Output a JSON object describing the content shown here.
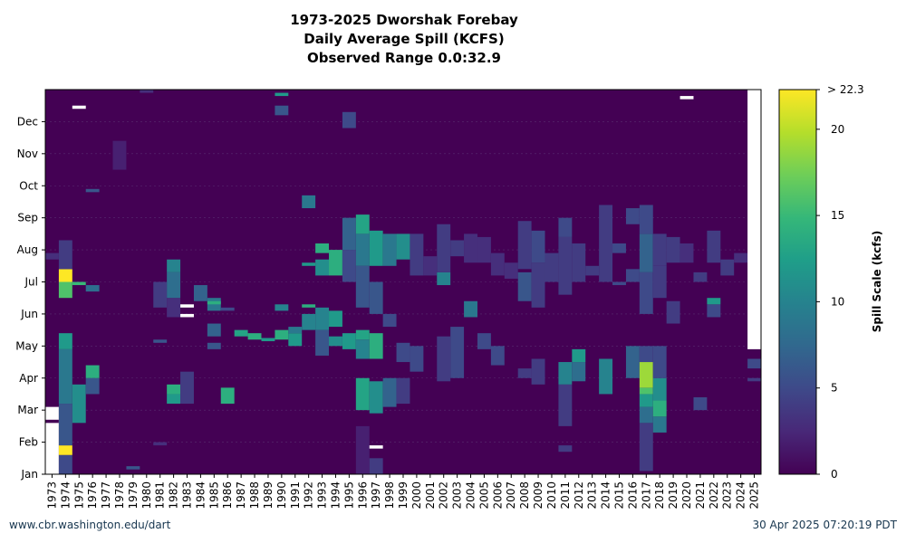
{
  "page": {
    "title_lines": [
      "1973-2025 Dworshak Forebay",
      "Daily Average Spill (KCFS)",
      "Observed Range 0.0:32.9"
    ],
    "footer_left": "www.cbr.washington.edu/dart",
    "footer_right": "30 Apr 2025 07:20:19 PDT"
  },
  "chart_data": {
    "type": "heatmap",
    "title": "1973-2025 Dworshak Forebay",
    "subtitle": "Daily Average Spill (KCFS)",
    "range_label": "Observed Range 0.0:32.9",
    "x_categories": [
      "1973",
      "1974",
      "1975",
      "1976",
      "1977",
      "1978",
      "1979",
      "1980",
      "1981",
      "1982",
      "1983",
      "1984",
      "1985",
      "1986",
      "1987",
      "1988",
      "1989",
      "1990",
      "1991",
      "1992",
      "1993",
      "1994",
      "1995",
      "1996",
      "1997",
      "1998",
      "1999",
      "2000",
      "2001",
      "2002",
      "2003",
      "2004",
      "2005",
      "2006",
      "2007",
      "2008",
      "2009",
      "2010",
      "2011",
      "2012",
      "2013",
      "2014",
      "2015",
      "2016",
      "2017",
      "2018",
      "2019",
      "2020",
      "2021",
      "2022",
      "2023",
      "2024",
      "2025"
    ],
    "y_ticks": [
      "Jan",
      "Feb",
      "Mar",
      "Apr",
      "May",
      "Jun",
      "Jul",
      "Aug",
      "Sep",
      "Oct",
      "Nov",
      "Dec"
    ],
    "colorbar": {
      "label": "Spill Scale (kcfs)",
      "min": 0,
      "max": 22.3,
      "ticks": [
        0,
        5,
        10,
        15,
        20
      ],
      "max_label": "> 22.3",
      "colors": [
        "#440154",
        "#482878",
        "#3e4989",
        "#31688e",
        "#26828e",
        "#1f9e89",
        "#35b779",
        "#6ece58",
        "#b5de2b",
        "#fde725"
      ]
    },
    "background_value": 0,
    "missing_color": "#ffffff",
    "events": [
      {
        "year": "1973",
        "months": [
          1.0,
          3.1
        ],
        "value": null
      },
      {
        "year": "1973",
        "months": [
          2.6,
          2.7
        ],
        "value": 0
      },
      {
        "year": "1973",
        "months": [
          7.7,
          7.9
        ],
        "value": 3
      },
      {
        "year": "1974",
        "months": [
          1.0,
          1.6
        ],
        "value": 5
      },
      {
        "year": "1974",
        "months": [
          1.6,
          1.9
        ],
        "value": 22.3
      },
      {
        "year": "1974",
        "months": [
          1.9,
          3.2
        ],
        "value": 6
      },
      {
        "year": "1974",
        "months": [
          3.2,
          4.9
        ],
        "value": 9
      },
      {
        "year": "1974",
        "months": [
          4.9,
          5.4
        ],
        "value": 12
      },
      {
        "year": "1974",
        "months": [
          6.5,
          7.0
        ],
        "value": 16
      },
      {
        "year": "1974",
        "months": [
          7.0,
          7.4
        ],
        "value": 22.3
      },
      {
        "year": "1974",
        "months": [
          7.4,
          8.3
        ],
        "value": 4
      },
      {
        "year": "1975",
        "months": [
          2.6,
          3.8
        ],
        "value": 11
      },
      {
        "year": "1975",
        "months": [
          6.9,
          7.0
        ],
        "value": 15
      },
      {
        "year": "1975",
        "months": [
          12.4,
          12.5
        ],
        "value": null
      },
      {
        "year": "1976",
        "months": [
          3.5,
          4.0
        ],
        "value": 6
      },
      {
        "year": "1976",
        "months": [
          4.0,
          4.4
        ],
        "value": 14
      },
      {
        "year": "1976",
        "months": [
          6.7,
          6.9
        ],
        "value": 8
      },
      {
        "year": "1976",
        "months": [
          9.8,
          9.9
        ],
        "value": 6
      },
      {
        "year": "1978",
        "months": [
          10.5,
          11.4
        ],
        "value": 2
      },
      {
        "year": "1979",
        "months": [
          1.15,
          1.25
        ],
        "value": 6
      },
      {
        "year": "1980",
        "months": [
          12.9,
          13.0
        ],
        "value": 3
      },
      {
        "year": "1981",
        "months": [
          5.1,
          5.2
        ],
        "value": 6
      },
      {
        "year": "1981",
        "months": [
          6.2,
          7.0
        ],
        "value": 4
      },
      {
        "year": "1981",
        "months": [
          1.9,
          2.0
        ],
        "value": 3
      },
      {
        "year": "1982",
        "months": [
          3.2,
          3.5
        ],
        "value": 12
      },
      {
        "year": "1982",
        "months": [
          3.5,
          3.8
        ],
        "value": 14
      },
      {
        "year": "1982",
        "months": [
          5.9,
          6.5
        ],
        "value": 3
      },
      {
        "year": "1982",
        "months": [
          6.5,
          7.3
        ],
        "value": 8
      },
      {
        "year": "1982",
        "months": [
          7.3,
          7.7
        ],
        "value": 10
      },
      {
        "year": "1983",
        "months": [
          3.2,
          4.2
        ],
        "value": 4
      },
      {
        "year": "1983",
        "months": [
          6.2,
          6.3
        ],
        "value": null
      },
      {
        "year": "1983",
        "months": [
          5.9,
          6.0
        ],
        "value": null
      },
      {
        "year": "1984",
        "months": [
          6.4,
          6.9
        ],
        "value": 7
      },
      {
        "year": "1985",
        "months": [
          4.9,
          5.1
        ],
        "value": 6
      },
      {
        "year": "1985",
        "months": [
          5.3,
          5.7
        ],
        "value": 7
      },
      {
        "year": "1985",
        "months": [
          6.1,
          6.5
        ],
        "value": 9
      },
      {
        "year": "1985",
        "months": [
          6.3,
          6.4
        ],
        "value": 14
      },
      {
        "year": "1986",
        "months": [
          3.2,
          3.7
        ],
        "value": 14
      },
      {
        "year": "1986",
        "months": [
          6.1,
          6.2
        ],
        "value": 5
      },
      {
        "year": "1987",
        "months": [
          5.3,
          5.5
        ],
        "value": 13
      },
      {
        "year": "1988",
        "months": [
          5.2,
          5.4
        ],
        "value": 14
      },
      {
        "year": "1989",
        "months": [
          5.15,
          5.25
        ],
        "value": 12
      },
      {
        "year": "1990",
        "months": [
          5.2,
          5.5
        ],
        "value": 14
      },
      {
        "year": "1990",
        "months": [
          6.1,
          6.3
        ],
        "value": 10
      },
      {
        "year": "1990",
        "months": [
          12.2,
          12.5
        ],
        "value": 6
      },
      {
        "year": "1990",
        "months": [
          12.8,
          12.9
        ],
        "value": 12
      },
      {
        "year": "1991",
        "months": [
          5.0,
          5.4
        ],
        "value": 12
      },
      {
        "year": "1991",
        "months": [
          5.4,
          5.6
        ],
        "value": 9
      },
      {
        "year": "1992",
        "months": [
          5.5,
          6.0
        ],
        "value": 10
      },
      {
        "year": "1992",
        "months": [
          6.2,
          6.3
        ],
        "value": 14
      },
      {
        "year": "1992",
        "months": [
          7.5,
          7.6
        ],
        "value": 12
      },
      {
        "year": "1992",
        "months": [
          9.3,
          9.7
        ],
        "value": 9
      },
      {
        "year": "1993",
        "months": [
          4.7,
          5.5
        ],
        "value": 6
      },
      {
        "year": "1993",
        "months": [
          5.5,
          6.2
        ],
        "value": 10
      },
      {
        "year": "1993",
        "months": [
          7.2,
          7.7
        ],
        "value": 11
      },
      {
        "year": "1993",
        "months": [
          7.9,
          8.2
        ],
        "value": 14
      },
      {
        "year": "1994",
        "months": [
          5.0,
          5.3
        ],
        "value": 11
      },
      {
        "year": "1994",
        "months": [
          5.6,
          6.1
        ],
        "value": 12
      },
      {
        "year": "1994",
        "months": [
          7.2,
          8.0
        ],
        "value": 14
      },
      {
        "year": "1995",
        "months": [
          4.9,
          5.4
        ],
        "value": 12
      },
      {
        "year": "1995",
        "months": [
          7.0,
          8.0
        ],
        "value": 5
      },
      {
        "year": "1995",
        "months": [
          8.0,
          9.0
        ],
        "value": 7
      },
      {
        "year": "1995",
        "months": [
          11.8,
          12.3
        ],
        "value": 5
      },
      {
        "year": "1996",
        "months": [
          1.0,
          2.5
        ],
        "value": 2
      },
      {
        "year": "1996",
        "months": [
          3.0,
          4.0
        ],
        "value": 13
      },
      {
        "year": "1996",
        "months": [
          4.6,
          5.2
        ],
        "value": 10
      },
      {
        "year": "1996",
        "months": [
          5.2,
          5.5
        ],
        "value": 13
      },
      {
        "year": "1996",
        "months": [
          6.2,
          7.5
        ],
        "value": 6
      },
      {
        "year": "1996",
        "months": [
          7.5,
          8.5
        ],
        "value": 9
      },
      {
        "year": "1996",
        "months": [
          8.5,
          9.1
        ],
        "value": 13
      },
      {
        "year": "1997",
        "months": [
          1.0,
          1.5
        ],
        "value": 4
      },
      {
        "year": "1997",
        "months": [
          1.8,
          1.9
        ],
        "value": null
      },
      {
        "year": "1997",
        "months": [
          2.9,
          3.9
        ],
        "value": 11
      },
      {
        "year": "1997",
        "months": [
          4.6,
          5.4
        ],
        "value": 14
      },
      {
        "year": "1997",
        "months": [
          6.0,
          7.0
        ],
        "value": 6
      },
      {
        "year": "1997",
        "months": [
          7.5,
          8.6
        ],
        "value": 12
      },
      {
        "year": "1998",
        "months": [
          3.1,
          4.0
        ],
        "value": 7
      },
      {
        "year": "1998",
        "months": [
          5.6,
          6.0
        ],
        "value": 5
      },
      {
        "year": "1998",
        "months": [
          7.5,
          8.5
        ],
        "value": 9
      },
      {
        "year": "1999",
        "months": [
          3.2,
          4.0
        ],
        "value": 4
      },
      {
        "year": "1999",
        "months": [
          4.5,
          5.1
        ],
        "value": 5
      },
      {
        "year": "1999",
        "months": [
          7.7,
          8.5
        ],
        "value": 11
      },
      {
        "year": "2000",
        "months": [
          4.2,
          5.0
        ],
        "value": 5
      },
      {
        "year": "2000",
        "months": [
          7.2,
          8.5
        ],
        "value": 4
      },
      {
        "year": "2001",
        "months": [
          7.2,
          7.8
        ],
        "value": 3
      },
      {
        "year": "2002",
        "months": [
          3.9,
          5.3
        ],
        "value": 4
      },
      {
        "year": "2002",
        "months": [
          6.9,
          7.3
        ],
        "value": 10
      },
      {
        "year": "2002",
        "months": [
          7.3,
          8.8
        ],
        "value": 4
      },
      {
        "year": "2003",
        "months": [
          4.0,
          5.6
        ],
        "value": 5
      },
      {
        "year": "2003",
        "months": [
          7.8,
          8.3
        ],
        "value": 4
      },
      {
        "year": "2004",
        "months": [
          5.9,
          6.4
        ],
        "value": 9
      },
      {
        "year": "2004",
        "months": [
          7.6,
          8.5
        ],
        "value": 3
      },
      {
        "year": "2005",
        "months": [
          4.9,
          5.4
        ],
        "value": 5
      },
      {
        "year": "2005",
        "months": [
          7.6,
          8.4
        ],
        "value": 3
      },
      {
        "year": "2006",
        "months": [
          4.4,
          5.0
        ],
        "value": 5
      },
      {
        "year": "2006",
        "months": [
          7.2,
          7.9
        ],
        "value": 3
      },
      {
        "year": "2007",
        "months": [
          7.1,
          7.6
        ],
        "value": 3
      },
      {
        "year": "2008",
        "months": [
          4.0,
          4.3
        ],
        "value": 4
      },
      {
        "year": "2008",
        "months": [
          6.4,
          7.3
        ],
        "value": 6
      },
      {
        "year": "2008",
        "months": [
          7.4,
          8.9
        ],
        "value": 4
      },
      {
        "year": "2009",
        "months": [
          3.8,
          4.6
        ],
        "value": 4
      },
      {
        "year": "2009",
        "months": [
          6.2,
          7.6
        ],
        "value": 4
      },
      {
        "year": "2009",
        "months": [
          7.6,
          8.6
        ],
        "value": 5
      },
      {
        "year": "2010",
        "months": [
          7.0,
          7.9
        ],
        "value": 4
      },
      {
        "year": "2011",
        "months": [
          1.7,
          1.9
        ],
        "value": 4
      },
      {
        "year": "2011",
        "months": [
          2.5,
          3.8
        ],
        "value": 4
      },
      {
        "year": "2011",
        "months": [
          3.8,
          4.5
        ],
        "value": 10
      },
      {
        "year": "2011",
        "months": [
          6.6,
          8.4
        ],
        "value": 4
      },
      {
        "year": "2011",
        "months": [
          8.4,
          9.0
        ],
        "value": 5
      },
      {
        "year": "2012",
        "months": [
          3.9,
          4.5
        ],
        "value": 8
      },
      {
        "year": "2012",
        "months": [
          4.5,
          4.9
        ],
        "value": 12
      },
      {
        "year": "2012",
        "months": [
          7.0,
          8.2
        ],
        "value": 4
      },
      {
        "year": "2013",
        "months": [
          7.2,
          7.5
        ],
        "value": 4
      },
      {
        "year": "2014",
        "months": [
          3.5,
          4.6
        ],
        "value": 10
      },
      {
        "year": "2014",
        "months": [
          7.0,
          9.4
        ],
        "value": 4
      },
      {
        "year": "2015",
        "months": [
          6.9,
          7.0
        ],
        "value": 5
      },
      {
        "year": "2015",
        "months": [
          7.9,
          8.2
        ],
        "value": 5
      },
      {
        "year": "2016",
        "months": [
          4.0,
          5.0
        ],
        "value": 7
      },
      {
        "year": "2016",
        "months": [
          7.0,
          7.4
        ],
        "value": 5
      },
      {
        "year": "2016",
        "months": [
          8.8,
          9.3
        ],
        "value": 5
      },
      {
        "year": "2017",
        "months": [
          1.1,
          2.6
        ],
        "value": 4
      },
      {
        "year": "2017",
        "months": [
          2.6,
          3.1
        ],
        "value": 8
      },
      {
        "year": "2017",
        "months": [
          3.1,
          3.5
        ],
        "value": 12
      },
      {
        "year": "2017",
        "months": [
          3.5,
          3.7
        ],
        "value": 16
      },
      {
        "year": "2017",
        "months": [
          3.7,
          4.5
        ],
        "value": 19
      },
      {
        "year": "2017",
        "months": [
          4.5,
          5.0
        ],
        "value": 5
      },
      {
        "year": "2017",
        "months": [
          6.0,
          7.3
        ],
        "value": 5
      },
      {
        "year": "2017",
        "months": [
          7.3,
          8.5
        ],
        "value": 7
      },
      {
        "year": "2017",
        "months": [
          8.5,
          9.4
        ],
        "value": 5
      },
      {
        "year": "2018",
        "months": [
          2.3,
          2.8
        ],
        "value": 9
      },
      {
        "year": "2018",
        "months": [
          2.8,
          3.3
        ],
        "value": 14
      },
      {
        "year": "2018",
        "months": [
          3.3,
          4.0
        ],
        "value": 11
      },
      {
        "year": "2018",
        "months": [
          4.0,
          5.0
        ],
        "value": 5
      },
      {
        "year": "2018",
        "months": [
          6.5,
          7.5
        ],
        "value": 4
      },
      {
        "year": "2018",
        "months": [
          7.5,
          8.5
        ],
        "value": 4
      },
      {
        "year": "2019",
        "months": [
          5.7,
          6.4
        ],
        "value": 4
      },
      {
        "year": "2019",
        "months": [
          7.6,
          8.4
        ],
        "value": 4
      },
      {
        "year": "2020",
        "months": [
          7.6,
          8.2
        ],
        "value": 3
      },
      {
        "year": "2020",
        "months": [
          12.7,
          12.8
        ],
        "value": null
      },
      {
        "year": "2021",
        "months": [
          3.0,
          3.4
        ],
        "value": 5
      },
      {
        "year": "2021",
        "months": [
          7.0,
          7.3
        ],
        "value": 4
      },
      {
        "year": "2022",
        "months": [
          5.9,
          6.3
        ],
        "value": 5
      },
      {
        "year": "2022",
        "months": [
          6.3,
          6.5
        ],
        "value": 12
      },
      {
        "year": "2022",
        "months": [
          7.6,
          8.6
        ],
        "value": 4
      },
      {
        "year": "2023",
        "months": [
          7.2,
          7.7
        ],
        "value": 4
      },
      {
        "year": "2024",
        "months": [
          7.6,
          7.9
        ],
        "value": 3
      },
      {
        "year": "2025",
        "months": [
          3.9,
          4.0
        ],
        "value": 4
      },
      {
        "year": "2025",
        "months": [
          4.3,
          4.6
        ],
        "value": 5
      },
      {
        "year": "2025",
        "months": [
          4.9,
          13.0
        ],
        "value": null
      }
    ]
  }
}
